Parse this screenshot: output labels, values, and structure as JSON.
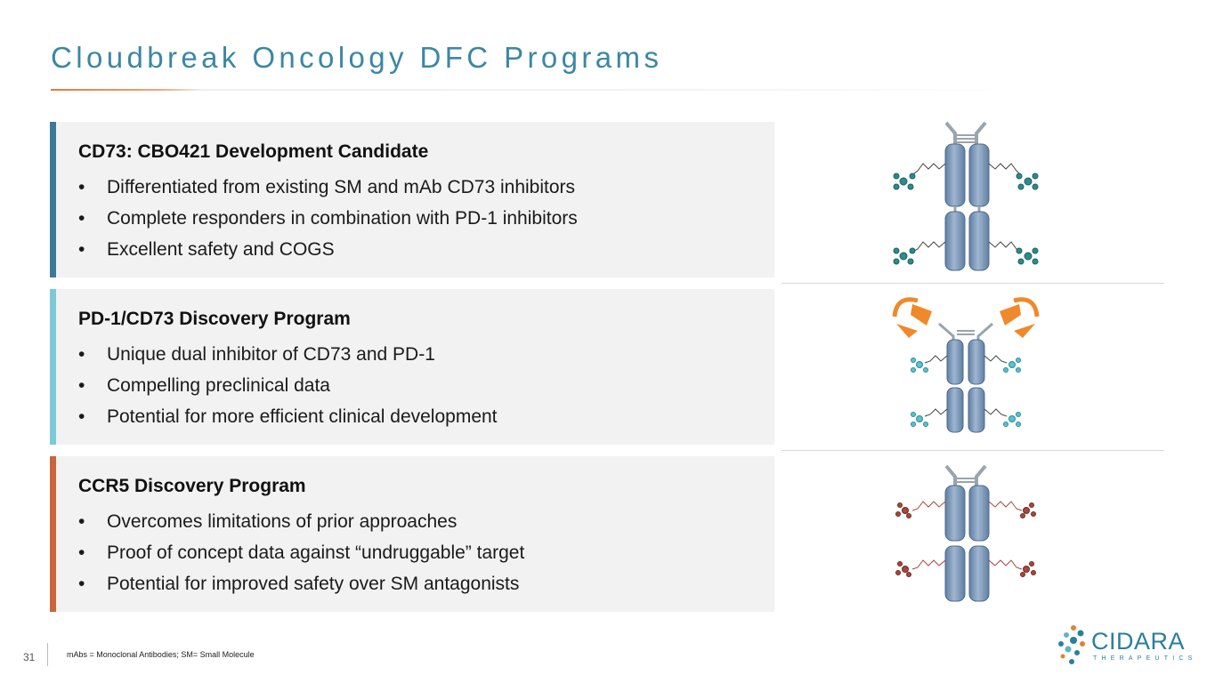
{
  "title": "Cloudbreak Oncology DFC Programs",
  "programs": [
    {
      "heading": "CD73: CBO421 Development Candidate",
      "accent": "#3A7A99",
      "bullet": "•",
      "items": [
        "Differentiated from existing SM and mAb CD73 inhibitors",
        "Complete responders in combination with PD-1 inhibitors",
        "Excellent safety and COGS"
      ]
    },
    {
      "heading": "PD-1/CD73 Discovery Program",
      "accent": "#7DC9D6",
      "bullet": "•",
      "items": [
        "Unique dual inhibitor of CD73 and PD-1",
        "Compelling preclinical data",
        "Potential for more efficient clinical development"
      ]
    },
    {
      "heading": "CCR5 Discovery Program",
      "accent": "#C9653A",
      "bullet": "•",
      "items": [
        "Overcomes limitations of prior approaches",
        "Proof of concept data against “undruggable” target",
        "Potential for improved safety over SM antagonists"
      ]
    }
  ],
  "footer": {
    "page_number": "31",
    "footnote": "mAbs = Monoclonal Antibodies; SM= Small Molecule"
  },
  "logo": {
    "name": "CIDARA",
    "tagline": "THERAPEUTICS"
  },
  "colors": {
    "title": "#3B87A3",
    "antibody": "#7F9CBC",
    "molecule_teal": "#2C8C8C",
    "molecule_cyan": "#59C2CF",
    "molecule_red": "#A8473B",
    "arrow_orange": "#F0892A"
  },
  "icons": [
    "antibody-drug-conjugate-icon",
    "bispecific-antibody-icon",
    "cidara-logo-icon"
  ]
}
